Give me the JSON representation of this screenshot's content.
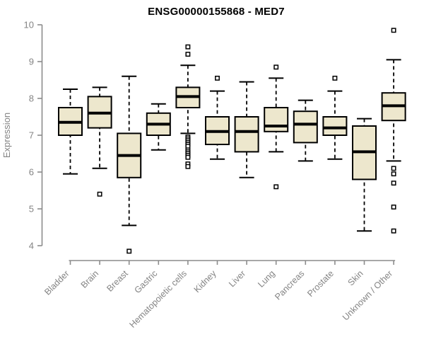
{
  "colors": {
    "background": "#ffffff",
    "box_fill": "#EDE7CD",
    "box_border": "#000000",
    "median": "#000000",
    "whisker": "#000000",
    "outlier_stroke": "#000000",
    "outlier_fill": "#ffffff",
    "axis_line": "#8C8C8C",
    "tick_label": "#848484",
    "title": "#000000"
  },
  "chart_data": {
    "type": "boxplot",
    "title": "ENSG00000155868 - MED7",
    "xlabel": "",
    "ylabel": "Expression",
    "ylim": [
      4,
      10
    ],
    "yticks": [
      4,
      5,
      6,
      7,
      8,
      9,
      10
    ],
    "grid": false,
    "legend": false,
    "categories": [
      "Bladder",
      "Brain",
      "Breast",
      "Gastric",
      "Hematopoietic cells",
      "Kidney",
      "Liver",
      "Lung",
      "Pancreas",
      "Prostate",
      "Skin",
      "Unknown / Other"
    ],
    "series": [
      {
        "category": "Bladder",
        "whisker_low": 5.95,
        "q1": 7.0,
        "median": 7.35,
        "q3": 7.75,
        "whisker_high": 8.25,
        "outliers": []
      },
      {
        "category": "Brain",
        "whisker_low": 6.1,
        "q1": 7.2,
        "median": 7.6,
        "q3": 8.05,
        "whisker_high": 8.3,
        "outliers": [
          5.4
        ]
      },
      {
        "category": "Breast",
        "whisker_low": 4.55,
        "q1": 5.85,
        "median": 6.45,
        "q3": 7.05,
        "whisker_high": 8.6,
        "outliers": [
          3.85
        ]
      },
      {
        "category": "Gastric",
        "whisker_low": 6.6,
        "q1": 7.0,
        "median": 7.3,
        "q3": 7.6,
        "whisker_high": 7.85,
        "outliers": []
      },
      {
        "category": "Hematopoietic cells",
        "whisker_low": 7.05,
        "q1": 7.75,
        "median": 8.05,
        "q3": 8.3,
        "whisker_high": 8.9,
        "outliers": [
          9.4,
          9.2,
          6.95,
          6.9,
          6.85,
          6.8,
          6.75,
          6.7,
          6.6,
          6.55,
          6.5,
          6.45,
          6.4,
          6.22,
          6.15
        ]
      },
      {
        "category": "Kidney",
        "whisker_low": 6.35,
        "q1": 6.75,
        "median": 7.1,
        "q3": 7.5,
        "whisker_high": 8.2,
        "outliers": [
          8.55
        ]
      },
      {
        "category": "Liver",
        "whisker_low": 5.85,
        "q1": 6.55,
        "median": 7.1,
        "q3": 7.5,
        "whisker_high": 8.45,
        "outliers": []
      },
      {
        "category": "Lung",
        "whisker_low": 6.55,
        "q1": 7.1,
        "median": 7.25,
        "q3": 7.75,
        "whisker_high": 8.55,
        "outliers": [
          8.85,
          5.6
        ]
      },
      {
        "category": "Pancreas",
        "whisker_low": 6.3,
        "q1": 6.8,
        "median": 7.3,
        "q3": 7.65,
        "whisker_high": 7.95,
        "outliers": []
      },
      {
        "category": "Prostate",
        "whisker_low": 6.35,
        "q1": 7.0,
        "median": 7.2,
        "q3": 7.5,
        "whisker_high": 8.2,
        "outliers": [
          8.55
        ]
      },
      {
        "category": "Skin",
        "whisker_low": 4.4,
        "q1": 5.8,
        "median": 6.55,
        "q3": 7.25,
        "whisker_high": 7.45,
        "outliers": []
      },
      {
        "category": "Unknown / Other",
        "whisker_low": 6.3,
        "q1": 7.4,
        "median": 7.8,
        "q3": 8.15,
        "whisker_high": 9.05,
        "outliers": [
          9.85,
          6.1,
          5.95,
          5.7,
          5.05,
          4.4
        ]
      }
    ]
  }
}
